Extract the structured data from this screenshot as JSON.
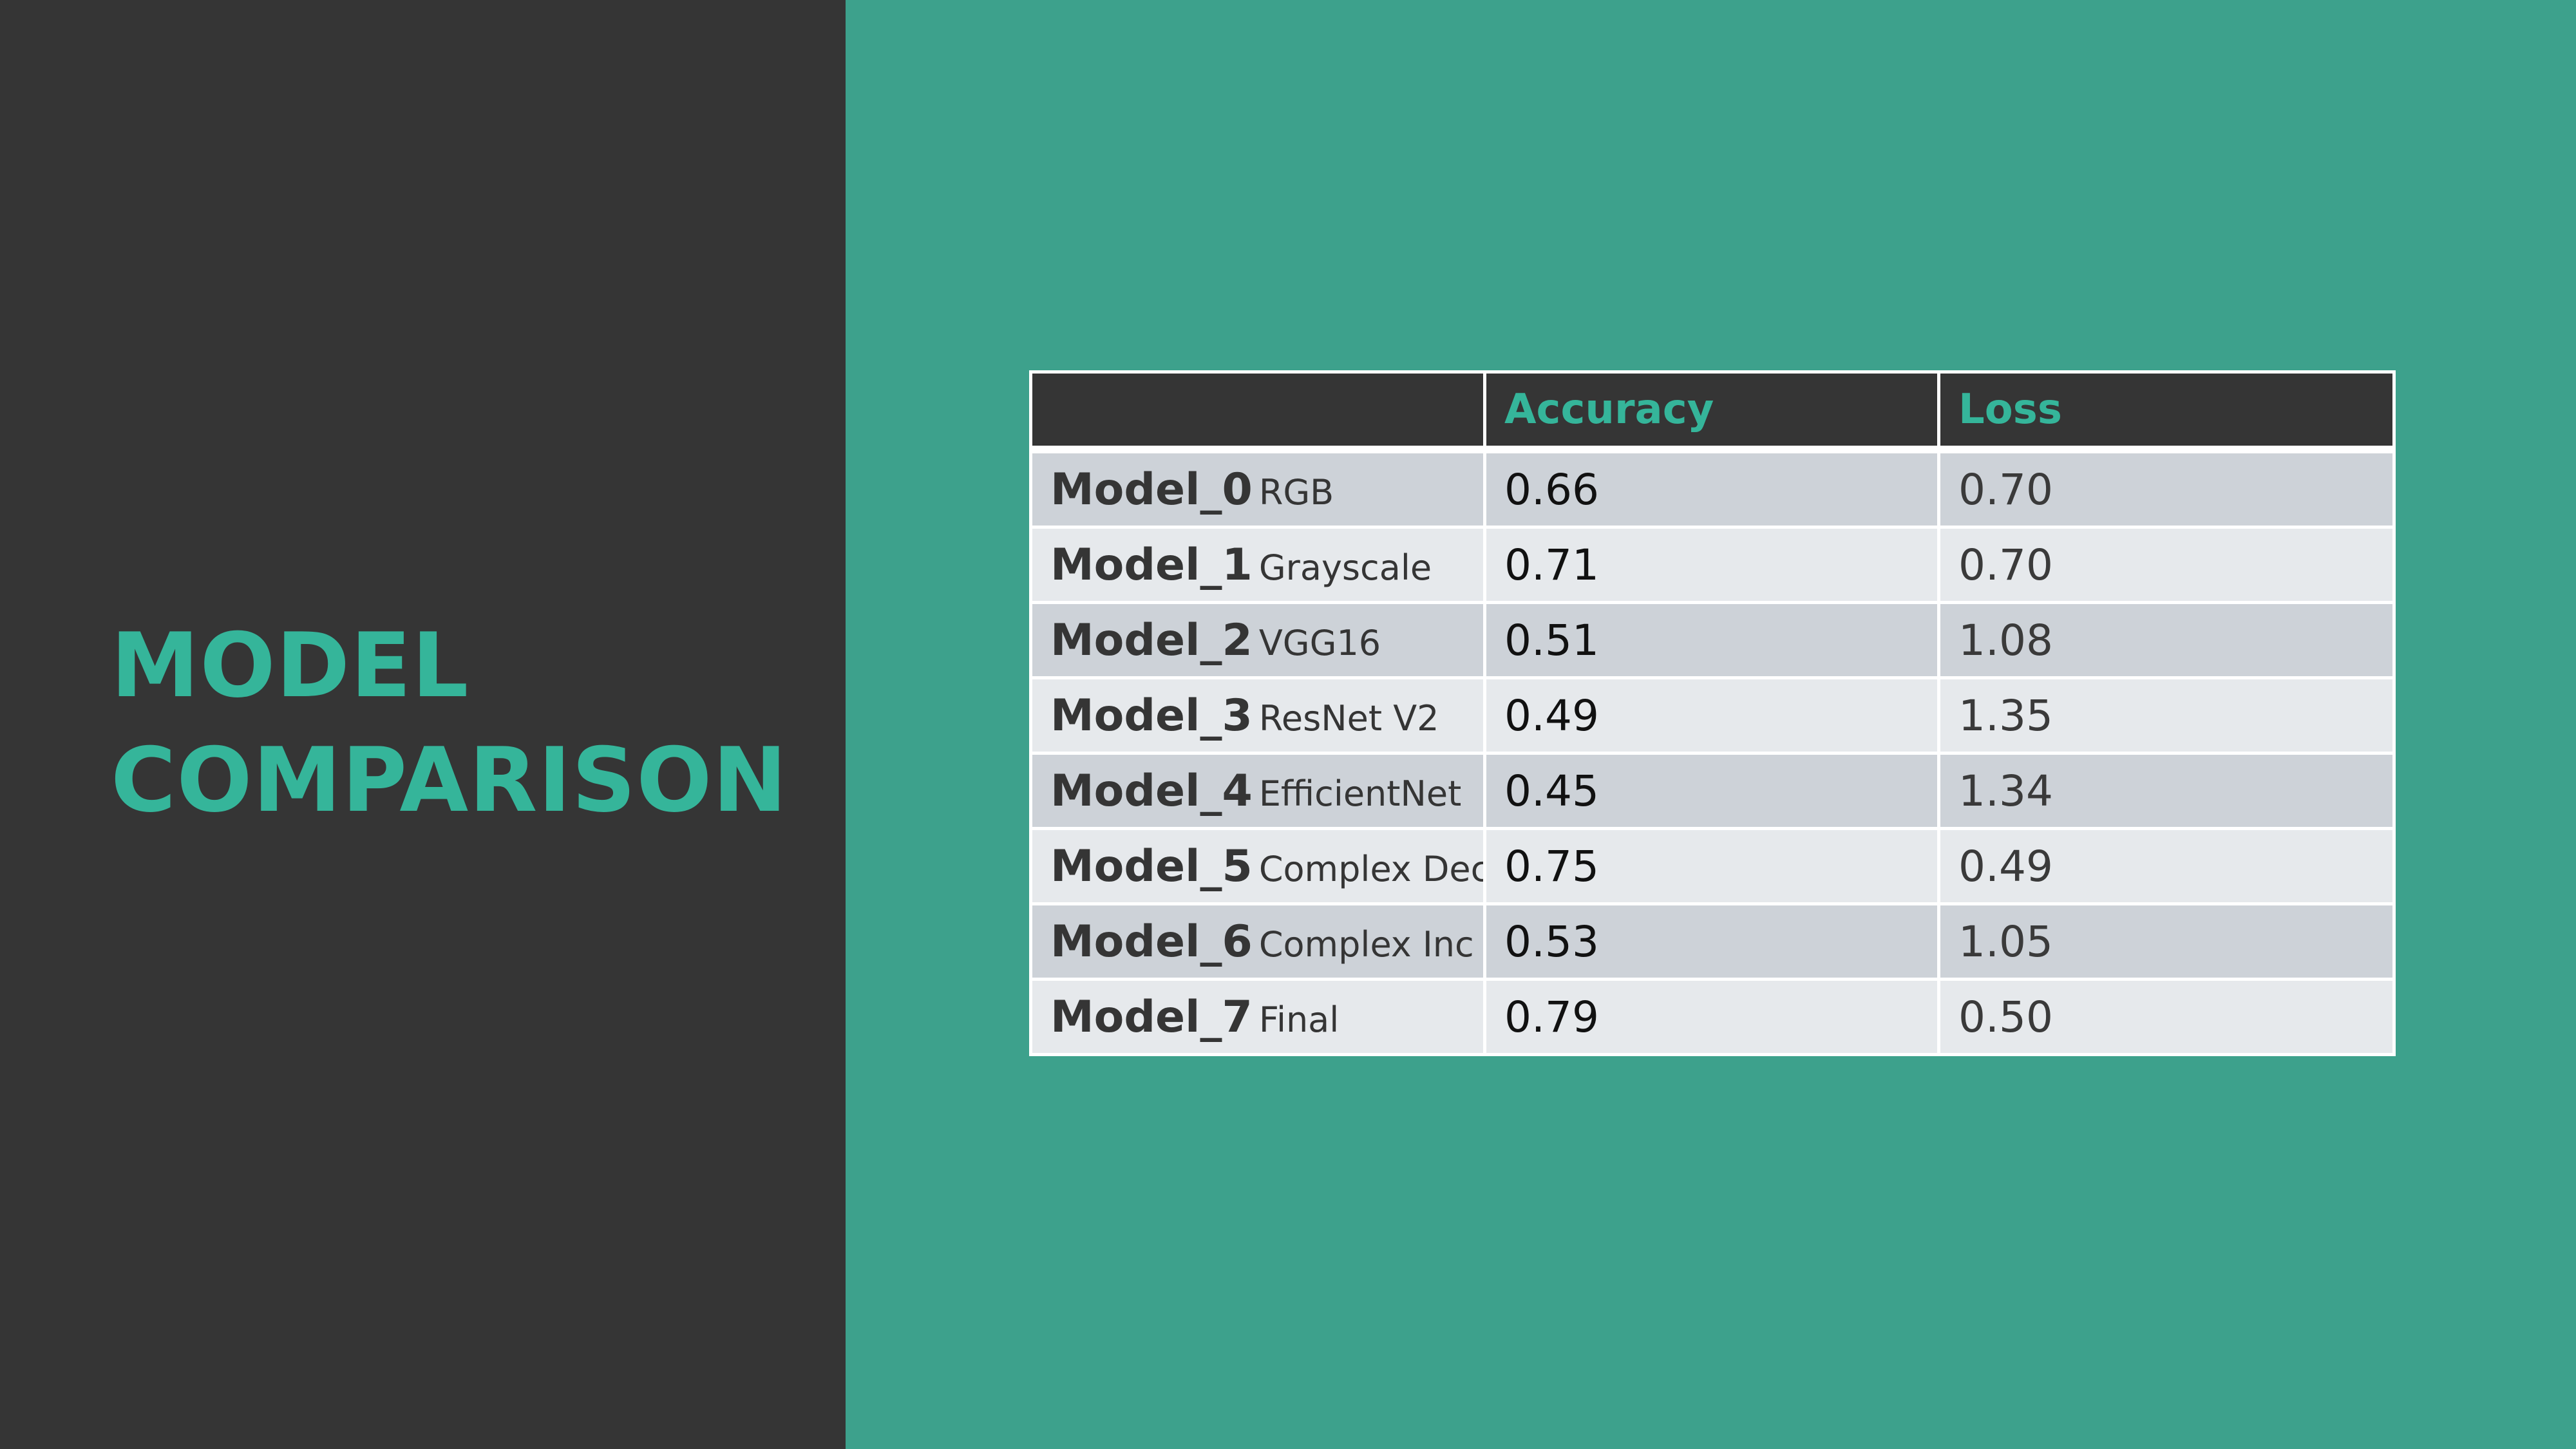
{
  "title": {
    "line1": "MODEL",
    "line2": "COMPARISON"
  },
  "colors": {
    "background": "#3da18c",
    "panel": "#353535",
    "accent": "#35b59a",
    "row_odd": "#cdd2d8",
    "row_even": "#e6e9ec"
  },
  "table": {
    "headers": [
      "",
      "Accuracy",
      "Loss"
    ],
    "rows": [
      {
        "model": "Model_0",
        "desc": "RGB",
        "accuracy": "0.66",
        "loss": "0.70"
      },
      {
        "model": "Model_1",
        "desc": "Grayscale",
        "accuracy": "0.71",
        "loss": "0.70"
      },
      {
        "model": "Model_2",
        "desc": "VGG16",
        "accuracy": "0.51",
        "loss": "1.08"
      },
      {
        "model": "Model_3",
        "desc": "ResNet V2",
        "accuracy": "0.49",
        "loss": "1.35"
      },
      {
        "model": "Model_4",
        "desc": "EfficientNet",
        "accuracy": "0.45",
        "loss": "1.34"
      },
      {
        "model": "Model_5",
        "desc": "Complex Dec",
        "accuracy": "0.75",
        "loss": "0.49"
      },
      {
        "model": "Model_6",
        "desc": "Complex Inc",
        "accuracy": "0.53",
        "loss": "1.05"
      },
      {
        "model": "Model_7",
        "desc": "Final",
        "accuracy": "0.79",
        "loss": "0.50"
      }
    ]
  }
}
